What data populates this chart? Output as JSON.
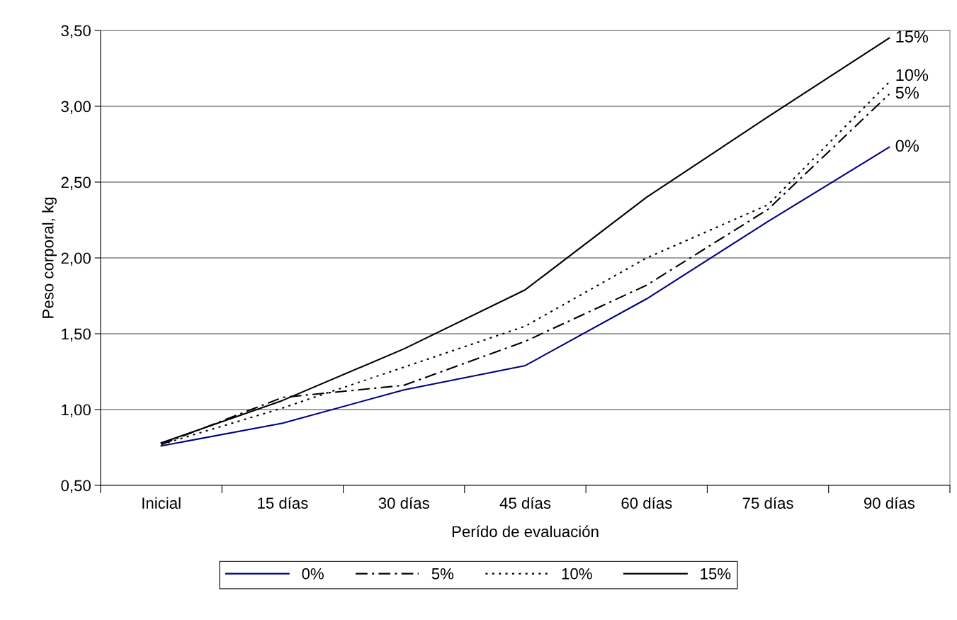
{
  "chart_data": {
    "type": "line",
    "xlabel": "Perído de evaluación",
    "ylabel": "Peso corporal, kg",
    "categories": [
      "Inicial",
      "15 días",
      "30 días",
      "45 días",
      "60 días",
      "75 días",
      "90 días"
    ],
    "series": [
      {
        "name": "0%",
        "color": "#000080",
        "line_style": "solid",
        "values": [
          0.76,
          0.91,
          1.13,
          1.29,
          1.73,
          2.24,
          2.73
        ]
      },
      {
        "name": "5%",
        "color": "#000000",
        "line_style": "dashdot",
        "values": [
          0.77,
          1.08,
          1.16,
          1.45,
          1.82,
          2.32,
          3.08
        ]
      },
      {
        "name": "10%",
        "color": "#000000",
        "line_style": "dotted",
        "values": [
          0.77,
          1.01,
          1.28,
          1.55,
          2.0,
          2.35,
          3.16
        ]
      },
      {
        "name": "15%",
        "color": "#000000",
        "line_style": "solid",
        "values": [
          0.78,
          1.06,
          1.4,
          1.79,
          2.4,
          2.93,
          3.45
        ]
      }
    ],
    "annotations": [
      {
        "text": "15%",
        "x": "90 días",
        "y": 3.45
      },
      {
        "text": "10%",
        "x": "90 días",
        "y": 3.16
      },
      {
        "text": "5%",
        "x": "90 días",
        "y": 3.08
      },
      {
        "text": "0%",
        "x": "90 días",
        "y": 2.73
      }
    ],
    "ylim": [
      0.5,
      3.5
    ],
    "yticks": [
      {
        "value": 0.5,
        "label": "0,50"
      },
      {
        "value": 1.0,
        "label": "1,00"
      },
      {
        "value": 1.5,
        "label": "1,50"
      },
      {
        "value": 2.0,
        "label": "2,00"
      },
      {
        "value": 2.5,
        "label": "2,50"
      },
      {
        "value": 3.0,
        "label": "3,00"
      },
      {
        "value": 3.5,
        "label": "3,50"
      }
    ],
    "grid": "y",
    "legend": "bottom",
    "marker": "none"
  }
}
